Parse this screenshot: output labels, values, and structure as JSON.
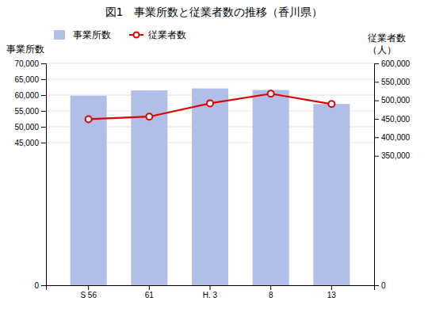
{
  "chart_data": {
    "type": "bar",
    "title": "図1　事業所数と従業者数の推移（香川県）",
    "categories": [
      "S 56",
      "61",
      "H. 3",
      "8",
      "13"
    ],
    "series": [
      {
        "name": "事業所数",
        "type": "bar",
        "color": "#b0bee8",
        "values": [
          59800,
          61500,
          62100,
          61600,
          57200
        ]
      },
      {
        "name": "従業者数",
        "type": "line",
        "color": "#dd0000",
        "marker": "circle",
        "axis": "y2",
        "values": [
          449000,
          456000,
          492000,
          518000,
          490000
        ]
      }
    ],
    "ylabel": "事業所数",
    "y2label": [
      "従業者数",
      "（人）"
    ],
    "ylim": [
      0,
      70000
    ],
    "yticks": [
      0,
      {
        "value": 45000,
        "label": "45,000"
      },
      {
        "value": 50000,
        "label": "50,000"
      },
      {
        "value": 55000,
        "label": "55,000"
      },
      {
        "value": 60000,
        "label": "60,000"
      },
      {
        "value": 65000,
        "label": "65,000"
      },
      {
        "value": 70000,
        "label": "70,000"
      }
    ],
    "y2lim": [
      0,
      600000
    ],
    "y2ticks": [
      0,
      {
        "value": 350000,
        "label": "350,000"
      },
      {
        "value": 400000,
        "label": "400,000"
      },
      {
        "value": 450000,
        "label": "450,000"
      },
      {
        "value": 500000,
        "label": "500,000"
      },
      {
        "value": 550000,
        "label": "550,000"
      },
      {
        "value": 600000,
        "label": "600,000"
      }
    ],
    "grid": true,
    "legend": "upper left"
  }
}
